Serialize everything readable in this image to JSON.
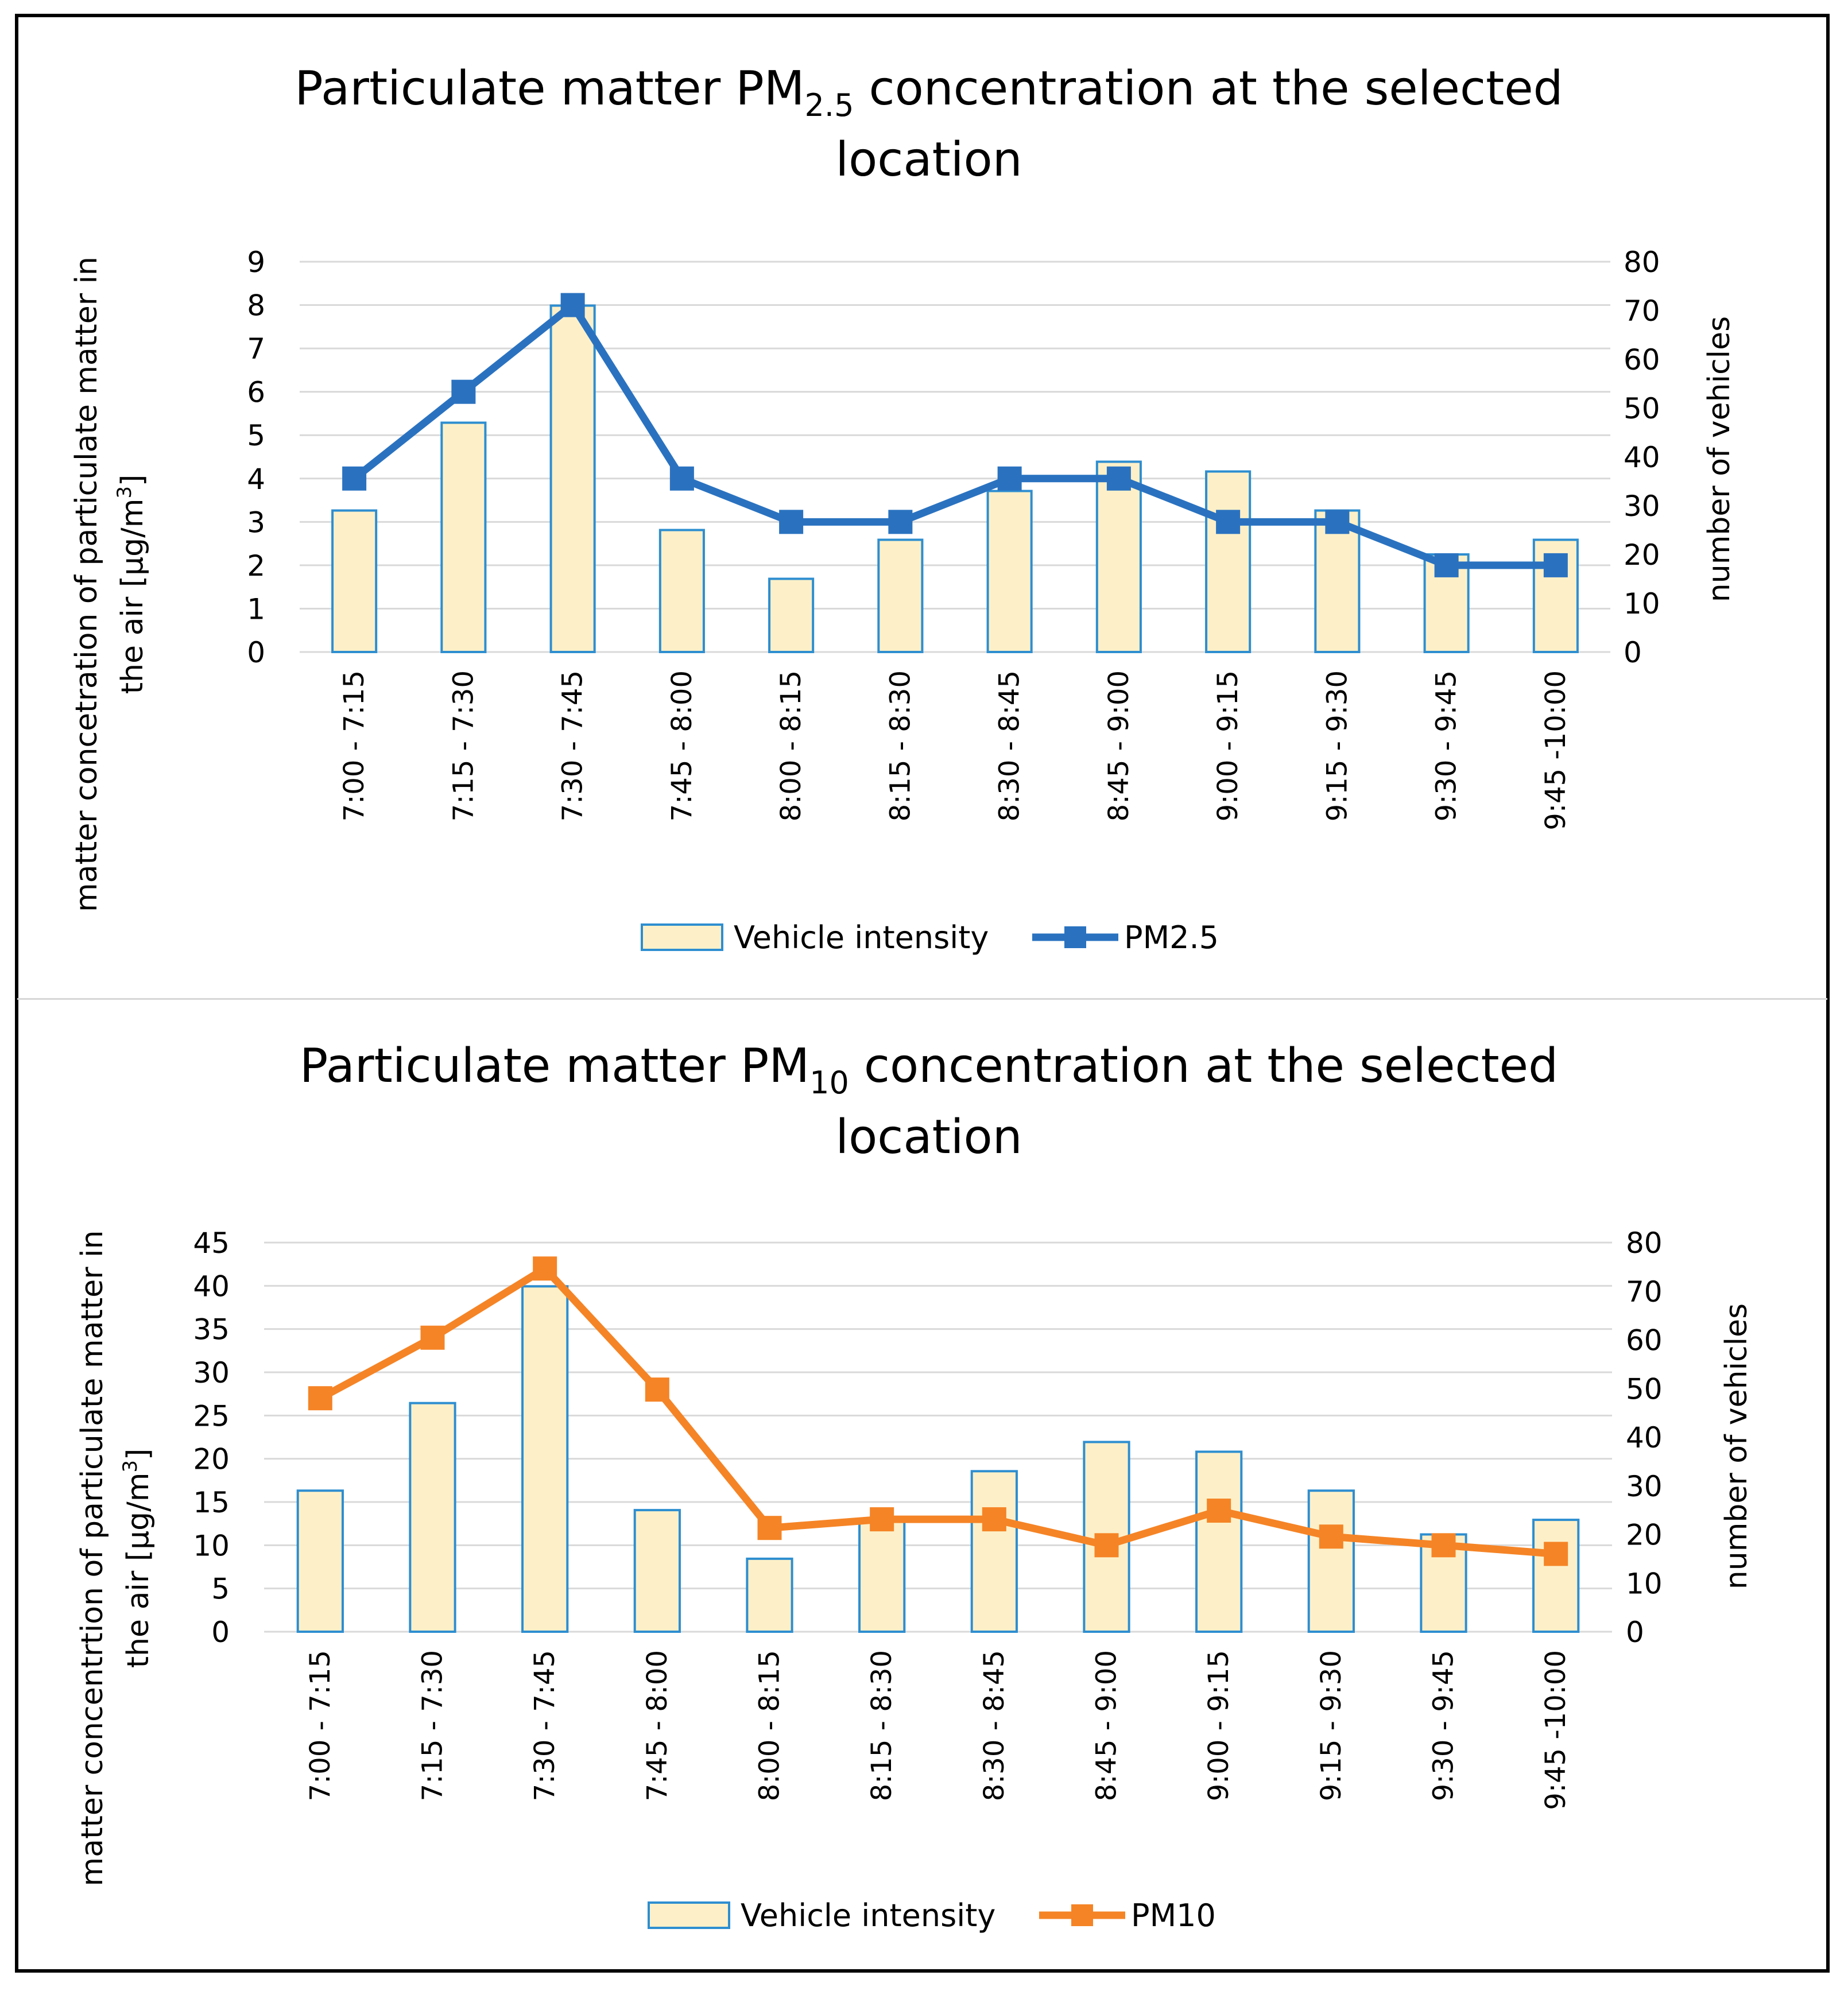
{
  "chart_data": [
    {
      "type": "bar+line",
      "title_main": "Particulate matter PM",
      "title_sub": "2.5",
      "title_rest": " concentration at the selected",
      "title_line2": "location",
      "categories": [
        "7:00 - 7:15",
        "7:15 - 7:30",
        "7:30 - 7:45",
        "7:45 - 8:00",
        "8:00 - 8:15",
        "8:15 - 8:30",
        "8:30 - 8:45",
        "8:45 - 9:00",
        "9:00 - 9:15",
        "9:15 - 9:30",
        "9:30 - 9:45",
        "9:45 -10:00"
      ],
      "series": [
        {
          "name": "Vehicle intensity",
          "kind": "bar",
          "axis": "right",
          "values": [
            29,
            47,
            71,
            25,
            15,
            23,
            33,
            39,
            37,
            29,
            20,
            23
          ]
        },
        {
          "name": "PM2.5",
          "kind": "line",
          "axis": "left",
          "values": [
            4,
            6,
            8,
            4,
            3,
            3,
            4,
            4,
            3,
            3,
            2,
            2
          ]
        }
      ],
      "ylabel_left_line1": "matter concetration of particulate matter in",
      "ylabel_left_line2_prefix": "the air [µg/m",
      "ylabel_left_line2_sup": "3",
      "ylabel_left_line2_suffix": "]",
      "ylabel_right": "number of vehicles",
      "ylim_left": [
        0,
        9
      ],
      "yticks_left": [
        0,
        1,
        2,
        3,
        4,
        5,
        6,
        7,
        8,
        9
      ],
      "ylim_right": [
        0,
        80
      ],
      "yticks_right": [
        0,
        10,
        20,
        30,
        40,
        50,
        60,
        70,
        80
      ],
      "legend": "bottom",
      "grid": true,
      "colors": {
        "bar_fill": "#fdf0c8",
        "bar_edge": "#2e8ed0",
        "line": "#2a72c0"
      }
    },
    {
      "type": "bar+line",
      "title_main": "Particulate matter PM",
      "title_sub": "10",
      "title_rest": " concentration at the selected",
      "title_line2": "location",
      "categories": [
        "7:00 - 7:15",
        "7:15 - 7:30",
        "7:30 - 7:45",
        "7:45 - 8:00",
        "8:00 - 8:15",
        "8:15 - 8:30",
        "8:30 - 8:45",
        "8:45 - 9:00",
        "9:00 - 9:15",
        "9:15 - 9:30",
        "9:30 - 9:45",
        "9:45 -10:00"
      ],
      "series": [
        {
          "name": "Vehicle intensity",
          "kind": "bar",
          "axis": "right",
          "values": [
            29,
            47,
            71,
            25,
            15,
            23,
            33,
            39,
            37,
            29,
            20,
            23
          ]
        },
        {
          "name": "PM10",
          "kind": "line",
          "axis": "left",
          "values": [
            27,
            34,
            42,
            28,
            12,
            13,
            13,
            10,
            14,
            11,
            10,
            9
          ]
        }
      ],
      "ylabel_left_line1": "matter concentrtion of particulate matter in",
      "ylabel_left_line2_prefix": "the air [µg/m",
      "ylabel_left_line2_sup": "3",
      "ylabel_left_line2_suffix": "]",
      "ylabel_right": "number of vehicles",
      "ylim_left": [
        0,
        45
      ],
      "yticks_left": [
        0,
        5,
        10,
        15,
        20,
        25,
        30,
        35,
        40,
        45
      ],
      "ylim_right": [
        0,
        80
      ],
      "yticks_right": [
        0,
        10,
        20,
        30,
        40,
        50,
        60,
        70,
        80
      ],
      "legend": "bottom",
      "grid": true,
      "colors": {
        "bar_fill": "#fdf0c8",
        "bar_edge": "#2e8ed0",
        "line": "#f58426"
      }
    }
  ]
}
